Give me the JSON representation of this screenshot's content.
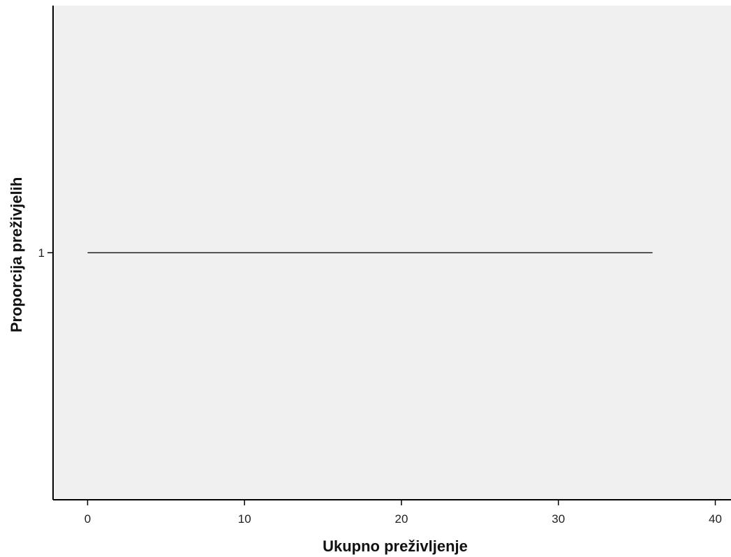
{
  "chart_data": {
    "type": "line",
    "title": "",
    "xlabel": "Ukupno preživljenje",
    "ylabel": "Proporcija preživjelih",
    "xlim": [
      -2.2,
      41
    ],
    "ylim": [
      0,
      2
    ],
    "x_ticks": [
      0,
      10,
      20,
      30,
      40
    ],
    "y_ticks": [
      1
    ],
    "grid": false,
    "legend": "none",
    "plot_background": "#f0f0f0",
    "series": [
      {
        "color": "#555555",
        "points": [
          {
            "x": 0,
            "y": 1
          },
          {
            "x": 36,
            "y": 1
          }
        ]
      }
    ]
  }
}
